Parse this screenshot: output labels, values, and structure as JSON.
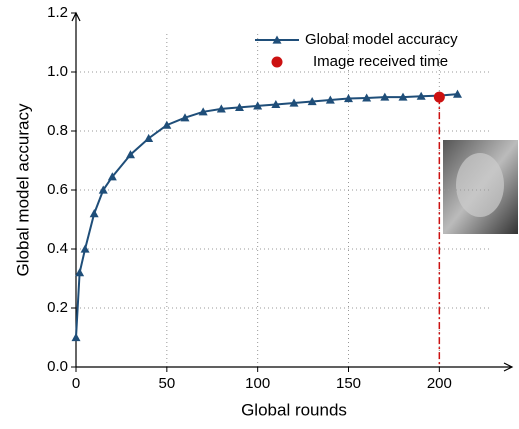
{
  "chart_data": {
    "type": "line",
    "xlabel": "Global rounds",
    "ylabel": "Global model accuracy",
    "xlim": [
      0,
      240
    ],
    "xticks": [
      0,
      50,
      100,
      150,
      200
    ],
    "ylim": [
      0,
      1.2
    ],
    "yticks": [
      {
        "value": 0,
        "label": "0.0"
      },
      0.2,
      0.4,
      0.6,
      0.8,
      {
        "value": 1,
        "label": "1.0"
      },
      1.2
    ],
    "grid": true,
    "legend": "top-right",
    "series": [
      {
        "name": "Global model accuracy",
        "type": "line",
        "color": "#1f4e79",
        "marker": "triangle",
        "x": [
          0,
          2,
          5,
          10,
          15,
          20,
          30,
          40,
          50,
          60,
          70,
          80,
          90,
          100,
          110,
          120,
          130,
          140,
          150,
          160,
          170,
          180,
          190,
          200,
          210
        ],
        "values": [
          0.1,
          0.32,
          0.4,
          0.52,
          0.6,
          0.645,
          0.72,
          0.775,
          0.82,
          0.845,
          0.865,
          0.875,
          0.88,
          0.885,
          0.89,
          0.895,
          0.9,
          0.905,
          0.91,
          0.912,
          0.915,
          0.915,
          0.918,
          0.92,
          0.925
        ]
      },
      {
        "name": "Image received time",
        "type": "scatter",
        "color": "#cc1111",
        "marker": "circle",
        "x": [
          200
        ],
        "values": [
          0.915
        ]
      }
    ]
  }
}
